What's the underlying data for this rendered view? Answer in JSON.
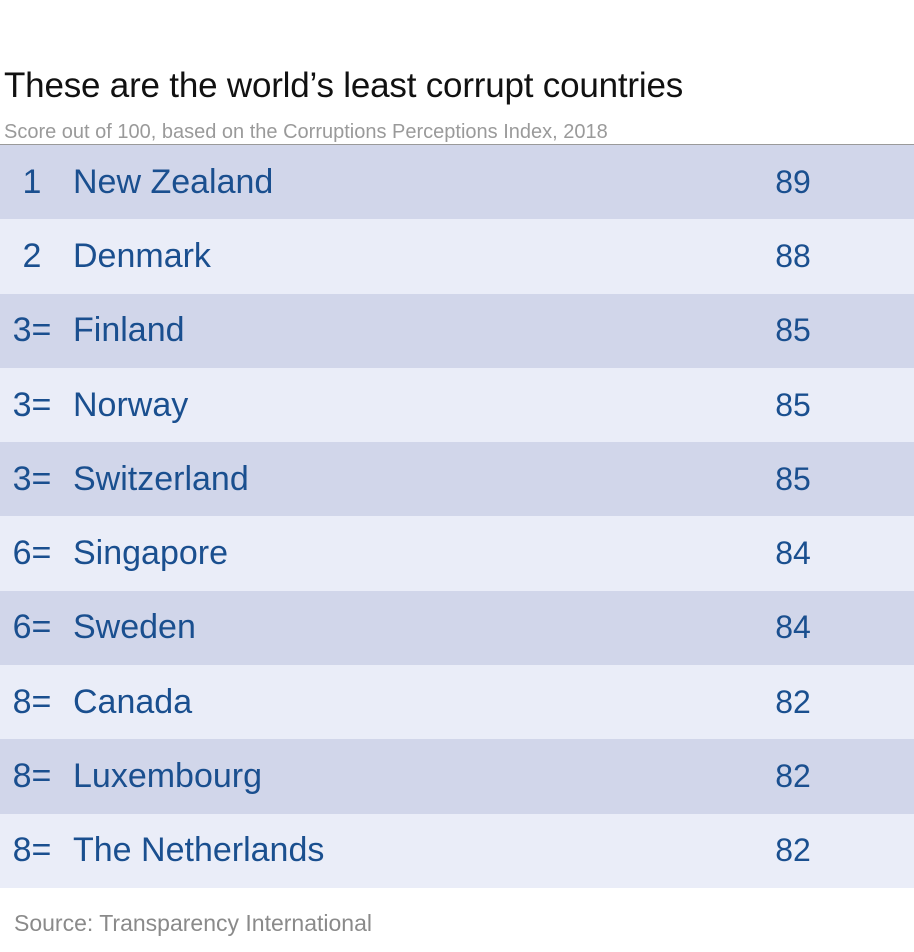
{
  "chart_data": {
    "type": "table",
    "title": "These are the world’s least corrupt countries",
    "subtitle": "Score out of 100, based on the Corruptions Perceptions Index, 2018",
    "source": "Source: Transparency International",
    "rows": [
      {
        "rank": "1",
        "country": "New Zealand",
        "score": 89
      },
      {
        "rank": "2",
        "country": "Denmark",
        "score": 88
      },
      {
        "rank": "3=",
        "country": "Finland",
        "score": 85
      },
      {
        "rank": "3=",
        "country": "Norway",
        "score": 85
      },
      {
        "rank": "3=",
        "country": "Switzerland",
        "score": 85
      },
      {
        "rank": "6=",
        "country": "Singapore",
        "score": 84
      },
      {
        "rank": "6=",
        "country": "Sweden",
        "score": 84
      },
      {
        "rank": "8=",
        "country": "Canada",
        "score": 82
      },
      {
        "rank": "8=",
        "country": "Luxembourg",
        "score": 82
      },
      {
        "rank": "8=",
        "country": "The Netherlands",
        "score": 82
      }
    ],
    "colors": {
      "row_dark": "#d1d6ea",
      "row_light": "#eaedf8",
      "text": "#1a4f8f"
    }
  }
}
